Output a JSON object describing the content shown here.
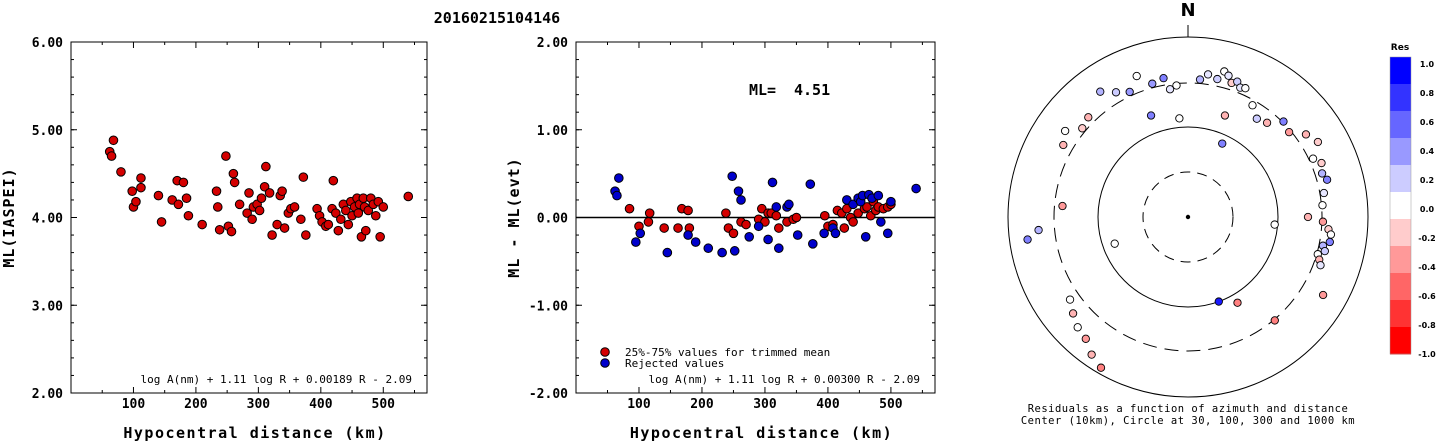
{
  "title": "20160215104146",
  "chart_data": [
    {
      "type": "scatter",
      "ylabel": "ML(IASPEI)",
      "xlabel": "Hypocentral distance (km)",
      "xlim": [
        0,
        570
      ],
      "ylim": [
        2.0,
        6.0
      ],
      "x_ticks": [
        "100",
        "200",
        "300",
        "400",
        "500"
      ],
      "y_ticks": [
        "2.00",
        "3.00",
        "4.00",
        "5.00",
        "6.00"
      ],
      "formula": "log A(nm) + 1.11 log R + 0.00189 R - 2.09",
      "point_color": "#d40000",
      "points": [
        [
          62,
          4.75
        ],
        [
          65,
          4.7
        ],
        [
          68,
          4.88
        ],
        [
          80,
          4.52
        ],
        [
          98,
          4.3
        ],
        [
          100,
          4.12
        ],
        [
          104,
          4.18
        ],
        [
          112,
          4.45
        ],
        [
          112,
          4.34
        ],
        [
          140,
          4.25
        ],
        [
          145,
          3.95
        ],
        [
          162,
          4.2
        ],
        [
          170,
          4.42
        ],
        [
          172,
          4.15
        ],
        [
          180,
          4.4
        ],
        [
          185,
          4.22
        ],
        [
          188,
          4.02
        ],
        [
          210,
          3.92
        ],
        [
          233,
          4.3
        ],
        [
          235,
          4.12
        ],
        [
          238,
          3.86
        ],
        [
          248,
          4.7
        ],
        [
          252,
          3.9
        ],
        [
          257,
          3.84
        ],
        [
          260,
          4.5
        ],
        [
          262,
          4.4
        ],
        [
          270,
          4.15
        ],
        [
          282,
          4.05
        ],
        [
          285,
          4.28
        ],
        [
          290,
          3.98
        ],
        [
          292,
          4.12
        ],
        [
          298,
          4.15
        ],
        [
          302,
          4.08
        ],
        [
          305,
          4.22
        ],
        [
          310,
          4.35
        ],
        [
          312,
          4.58
        ],
        [
          318,
          4.28
        ],
        [
          322,
          3.8
        ],
        [
          330,
          3.92
        ],
        [
          335,
          4.25
        ],
        [
          338,
          4.3
        ],
        [
          342,
          3.88
        ],
        [
          348,
          4.05
        ],
        [
          352,
          4.1
        ],
        [
          358,
          4.12
        ],
        [
          368,
          3.98
        ],
        [
          372,
          4.46
        ],
        [
          376,
          3.8
        ],
        [
          394,
          4.1
        ],
        [
          398,
          4.02
        ],
        [
          402,
          3.95
        ],
        [
          408,
          3.9
        ],
        [
          412,
          3.92
        ],
        [
          418,
          4.1
        ],
        [
          420,
          4.42
        ],
        [
          424,
          4.05
        ],
        [
          428,
          3.85
        ],
        [
          432,
          3.98
        ],
        [
          436,
          4.15
        ],
        [
          440,
          4.08
        ],
        [
          444,
          3.92
        ],
        [
          448,
          4.18
        ],
        [
          450,
          4.02
        ],
        [
          454,
          4.12
        ],
        [
          458,
          4.22
        ],
        [
          460,
          4.05
        ],
        [
          462,
          4.15
        ],
        [
          465,
          3.78
        ],
        [
          468,
          4.22
        ],
        [
          470,
          4.12
        ],
        [
          472,
          3.85
        ],
        [
          476,
          4.08
        ],
        [
          480,
          4.22
        ],
        [
          484,
          4.15
        ],
        [
          488,
          4.02
        ],
        [
          492,
          4.18
        ],
        [
          495,
          3.78
        ],
        [
          500,
          4.12
        ],
        [
          540,
          4.24
        ]
      ]
    },
    {
      "type": "scatter",
      "ylabel": "ML - ML(evt)",
      "xlabel": "Hypocentral distance (km)",
      "xlim": [
        0,
        570
      ],
      "ylim": [
        -2.0,
        2.0
      ],
      "x_ticks": [
        "100",
        "200",
        "300",
        "400",
        "500"
      ],
      "y_ticks": [
        "-2.00",
        "-1.00",
        "0.00",
        "1.00",
        "2.00"
      ],
      "zero_line": 0.0,
      "ml_label": "ML=",
      "ml_value": "4.51",
      "formula": "log A(nm) + 1.11 log R + 0.00300 R - 2.09",
      "legend": [
        {
          "label": "25%-75% values for trimmed mean",
          "color": "#d40000"
        },
        {
          "label": "Rejected values",
          "color": "#0000cc"
        }
      ],
      "series": [
        {
          "name": "25%-75% values for trimmed mean",
          "color": "#d40000",
          "points": [
            [
              85,
              0.1
            ],
            [
              100,
              -0.1
            ],
            [
              115,
              -0.05
            ],
            [
              117,
              0.05
            ],
            [
              140,
              -0.12
            ],
            [
              162,
              -0.12
            ],
            [
              168,
              0.1
            ],
            [
              178,
              0.08
            ],
            [
              180,
              -0.12
            ],
            [
              238,
              0.05
            ],
            [
              242,
              -0.12
            ],
            [
              250,
              -0.18
            ],
            [
              262,
              -0.05
            ],
            [
              270,
              -0.08
            ],
            [
              290,
              -0.02
            ],
            [
              295,
              0.1
            ],
            [
              300,
              -0.05
            ],
            [
              305,
              0.05
            ],
            [
              310,
              0.05
            ],
            [
              318,
              0.02
            ],
            [
              322,
              -0.12
            ],
            [
              335,
              -0.05
            ],
            [
              345,
              -0.02
            ],
            [
              350,
              0.0
            ],
            [
              395,
              0.02
            ],
            [
              400,
              -0.1
            ],
            [
              408,
              -0.08
            ],
            [
              415,
              0.08
            ],
            [
              422,
              0.05
            ],
            [
              426,
              -0.12
            ],
            [
              430,
              0.1
            ],
            [
              436,
              0.0
            ],
            [
              440,
              -0.05
            ],
            [
              448,
              0.05
            ],
            [
              458,
              0.1
            ],
            [
              462,
              0.12
            ],
            [
              468,
              0.02
            ],
            [
              472,
              0.18
            ],
            [
              476,
              0.08
            ],
            [
              480,
              0.12
            ],
            [
              488,
              0.1
            ],
            [
              495,
              0.12
            ],
            [
              500,
              0.15
            ]
          ]
        },
        {
          "name": "Rejected values",
          "color": "#0000cc",
          "points": [
            [
              62,
              0.3
            ],
            [
              65,
              0.25
            ],
            [
              68,
              0.45
            ],
            [
              95,
              -0.28
            ],
            [
              102,
              -0.18
            ],
            [
              145,
              -0.4
            ],
            [
              178,
              -0.2
            ],
            [
              190,
              -0.28
            ],
            [
              210,
              -0.35
            ],
            [
              232,
              -0.4
            ],
            [
              248,
              0.47
            ],
            [
              252,
              -0.38
            ],
            [
              258,
              0.3
            ],
            [
              262,
              0.2
            ],
            [
              275,
              -0.22
            ],
            [
              290,
              -0.1
            ],
            [
              305,
              -0.25
            ],
            [
              312,
              0.4
            ],
            [
              318,
              0.12
            ],
            [
              322,
              -0.35
            ],
            [
              335,
              0.12
            ],
            [
              338,
              0.15
            ],
            [
              352,
              -0.2
            ],
            [
              372,
              0.38
            ],
            [
              376,
              -0.3
            ],
            [
              394,
              -0.18
            ],
            [
              408,
              -0.12
            ],
            [
              412,
              -0.18
            ],
            [
              430,
              0.2
            ],
            [
              440,
              0.15
            ],
            [
              448,
              0.22
            ],
            [
              452,
              0.18
            ],
            [
              455,
              0.25
            ],
            [
              460,
              -0.22
            ],
            [
              465,
              0.26
            ],
            [
              470,
              0.22
            ],
            [
              480,
              0.25
            ],
            [
              484,
              -0.05
            ],
            [
              495,
              -0.18
            ],
            [
              500,
              0.18
            ],
            [
              540,
              0.33
            ]
          ]
        }
      ]
    },
    {
      "type": "scatter",
      "subtype": "polar-residuals",
      "north_label": "N",
      "caption_line1": "Residuals as a function of azimuth and distance",
      "caption_line2": "Center (10km), Circle at 30, 100, 300 and 1000 km",
      "colorbar_title": "Res",
      "colorbar_ticks": [
        "1.0",
        "0.8",
        "0.6",
        "0.4",
        "0.2",
        "0.0",
        "-0.2",
        "-0.4",
        "-0.6",
        "-0.8",
        "-1.0"
      ],
      "colorbar_range": [
        -1.0,
        1.0
      ],
      "rings_km": [
        30,
        100,
        300,
        1000
      ],
      "center_km": 10,
      "stations": [
        [
          5,
          460,
          0.3
        ],
        [
          8,
          480,
          0.1
        ],
        [
          12,
          470,
          0.2
        ],
        [
          14,
          500,
          0.0
        ],
        [
          16,
          490,
          0.1
        ],
        [
          18,
          470,
          -0.2
        ],
        [
          20,
          480,
          0.2
        ],
        [
          22,
          465,
          0.1
        ],
        [
          24,
          470,
          0.0
        ],
        [
          350,
          470,
          0.5
        ],
        [
          352,
          430,
          0.1
        ],
        [
          355,
          440,
          0.0
        ],
        [
          345,
          460,
          0.4
        ],
        [
          340,
          500,
          0.0
        ],
        [
          335,
          460,
          0.4
        ],
        [
          330,
          480,
          0.2
        ],
        [
          325,
          510,
          0.3
        ],
        [
          315,
          470,
          -0.3
        ],
        [
          310,
          460,
          -0.2
        ],
        [
          305,
          500,
          0.0
        ],
        [
          300,
          480,
          -0.3
        ],
        [
          275,
          420,
          -0.4
        ],
        [
          265,
          500,
          0.3
        ],
        [
          262,
          540,
          0.5
        ],
        [
          250,
          260,
          0.0
        ],
        [
          235,
          480,
          0.0
        ],
        [
          230,
          500,
          -0.3
        ],
        [
          225,
          520,
          0.0
        ],
        [
          220,
          530,
          -0.4
        ],
        [
          215,
          560,
          -0.3
        ],
        [
          210,
          580,
          -0.5
        ],
        [
          160,
          300,
          0.9
        ],
        [
          150,
          330,
          -0.5
        ],
        [
          140,
          450,
          -0.5
        ],
        [
          355,
          330,
          0.0
        ],
        [
          340,
          360,
          0.5
        ],
        [
          20,
          360,
          -0.3
        ],
        [
          25,
          270,
          0.5
        ],
        [
          45,
          450,
          0.5
        ],
        [
          50,
          440,
          -0.4
        ],
        [
          55,
          480,
          -0.3
        ],
        [
          60,
          500,
          -0.2
        ],
        [
          65,
          460,
          0.0
        ],
        [
          68,
          480,
          -0.2
        ],
        [
          72,
          470,
          0.3
        ],
        [
          75,
          480,
          0.5
        ],
        [
          80,
          460,
          0.1
        ],
        [
          85,
          450,
          0.0
        ],
        [
          90,
          400,
          -0.3
        ],
        [
          92,
          450,
          -0.4
        ],
        [
          95,
          470,
          -0.2
        ],
        [
          97,
          480,
          0.0
        ],
        [
          100,
          480,
          0.5
        ],
        [
          102,
          460,
          0.3
        ],
        [
          104,
          470,
          0.2
        ],
        [
          106,
          450,
          0.0
        ],
        [
          108,
          460,
          -0.3
        ],
        [
          110,
          470,
          0.1
        ],
        [
          95,
          290,
          0.0
        ],
        [
          120,
          520,
          -0.4
        ],
        [
          40,
          410,
          -0.3
        ],
        [
          35,
          400,
          0.2
        ],
        [
          30,
          430,
          0.0
        ]
      ]
    }
  ]
}
